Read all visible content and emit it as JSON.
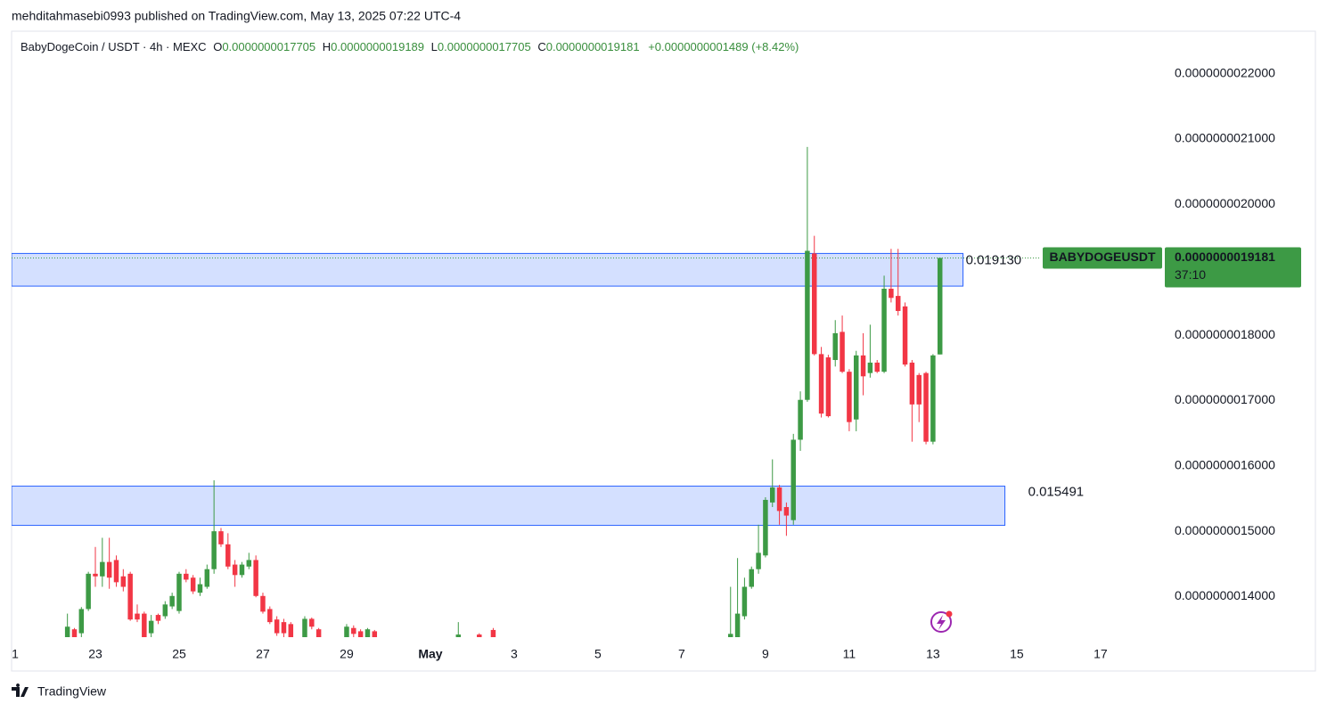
{
  "header": {
    "attribution": "mehditahmasebi0993 published on TradingView.com, May 13, 2025 07:22 UTC-4"
  },
  "chart_data": {
    "type": "candlestick",
    "symbol": "BabyDogeCoin / USDT · 4h · MEXC",
    "ohlc_header": {
      "o_label": "O",
      "open": "0.0000000017705",
      "h_label": "H",
      "high": "0.0000000019189",
      "l_label": "L",
      "low": "0.0000000017705",
      "c_label": "C",
      "close": "0.0000000019181",
      "change": "+0.0000000001489 (+8.42%)"
    },
    "colors": {
      "up": "#3d9a45",
      "down": "#f23645"
    },
    "x": [
      8,
      9,
      10,
      11,
      12,
      13,
      14,
      15,
      16,
      17,
      18,
      19,
      20,
      21,
      22,
      23,
      24,
      25,
      26,
      27,
      28,
      29,
      30,
      31,
      32,
      33,
      34,
      35,
      36,
      37,
      38,
      39,
      40,
      42,
      43,
      44,
      48,
      49,
      50,
      51,
      52,
      64,
      67,
      69,
      103,
      104,
      105,
      106,
      107,
      108,
      109,
      110,
      111,
      112,
      113,
      114,
      115,
      116,
      117,
      118,
      119,
      120,
      121,
      122,
      123,
      124,
      125,
      126,
      127,
      128,
      129,
      130,
      131,
      132,
      133
    ],
    "open": [
      1.335e-09,
      1.35e-09,
      1.344e-09,
      1.381e-09,
      1.435e-09,
      1.431e-09,
      1.453e-09,
      1.456e-09,
      1.431e-09,
      1.435e-09,
      1.374e-09,
      1.374e-09,
      1.344e-09,
      1.372e-09,
      1.37e-09,
      1.385e-09,
      1.378e-09,
      1.435e-09,
      1.429e-09,
      1.406e-09,
      1.415e-09,
      1.442e-09,
      1.5e-09,
      1.48e-09,
      1.449e-09,
      1.433e-09,
      1.446e-09,
      1.456e-09,
      1.401e-09,
      1.381e-09,
      1.365e-09,
      1.361e-09,
      1.358e-09,
      1.335e-09,
      1.366e-09,
      1.35e-09,
      1.335e-09,
      1.352e-09,
      1.347e-09,
      1.335e-09,
      1.347e-09,
      1.33e-09,
      1.342e-09,
      1.349e-09,
      1.33e-09,
      1.335e-09,
      1.37e-09,
      1.415e-09,
      1.442e-09,
      1.463e-09,
      1.544e-09,
      1.567e-09,
      1.537e-09,
      1.517e-09,
      1.64e-09,
      1.701e-09,
      1.925e-09,
      1.771e-09,
      1.766e-09,
      1.762e-09,
      1.805e-09,
      1.744e-09,
      1.671e-09,
      1.769e-09,
      1.742e-09,
      1.758e-09,
      1.744e-09,
      1.871e-09,
      1.86e-09,
      1.844e-09,
      1.758e-09,
      1.739e-09,
      1.742e-09,
      1.637e-09,
      1.7705e-09
    ],
    "high": [
      1.374e-09,
      1.352e-09,
      1.384e-09,
      1.438e-09,
      1.476e-09,
      1.49e-09,
      1.49e-09,
      1.463e-09,
      1.442e-09,
      1.438e-09,
      1.388e-09,
      1.377e-09,
      1.372e-09,
      1.374e-09,
      1.393e-09,
      1.406e-09,
      1.438e-09,
      1.442e-09,
      1.433e-09,
      1.429e-09,
      1.449e-09,
      1.578e-09,
      1.505e-09,
      1.497e-09,
      1.456e-09,
      1.453e-09,
      1.467e-09,
      1.463e-09,
      1.406e-09,
      1.385e-09,
      1.37e-09,
      1.366e-09,
      1.361e-09,
      1.37e-09,
      1.368e-09,
      1.352e-09,
      1.358e-09,
      1.356e-09,
      1.35e-09,
      1.352e-09,
      1.349e-09,
      1.361e-09,
      1.344e-09,
      1.352e-09,
      1.415e-09,
      1.459e-09,
      1.429e-09,
      1.446e-09,
      1.51e-09,
      1.552e-09,
      1.61e-09,
      1.571e-09,
      1.544e-09,
      1.649e-09,
      1.714e-09,
      2.088e-09,
      1.952e-09,
      1.782e-09,
      1.77e-09,
      1.823e-09,
      1.83e-09,
      1.748e-09,
      1.776e-09,
      1.803e-09,
      1.816e-09,
      1.762e-09,
      1.891e-09,
      1.932e-09,
      1.932e-09,
      1.85e-09,
      1.762e-09,
      1.742e-09,
      1.744e-09,
      1.771e-09,
      1.9189e-09
    ],
    "low": [
      1.33e-09,
      1.33e-09,
      1.338e-09,
      1.378e-09,
      1.415e-09,
      1.415e-09,
      1.412e-09,
      1.415e-09,
      1.408e-09,
      1.363e-09,
      1.361e-09,
      1.33e-09,
      1.338e-09,
      1.358e-09,
      1.366e-09,
      1.381e-09,
      1.374e-09,
      1.422e-09,
      1.404e-09,
      1.401e-09,
      1.412e-09,
      1.435e-09,
      1.476e-09,
      1.442e-09,
      1.415e-09,
      1.429e-09,
      1.442e-09,
      1.399e-09,
      1.374e-09,
      1.358e-09,
      1.34e-09,
      1.338e-09,
      1.33e-09,
      1.33e-09,
      1.35e-09,
      1.33e-09,
      1.33e-09,
      1.338e-09,
      1.33e-09,
      1.33e-09,
      1.33e-09,
      1.325e-09,
      1.33e-09,
      1.33e-09,
      1.32e-09,
      1.33e-09,
      1.365e-09,
      1.412e-09,
      1.435e-09,
      1.46e-09,
      1.537e-09,
      1.51e-09,
      1.493e-09,
      1.51e-09,
      1.623e-09,
      1.698e-09,
      1.769e-09,
      1.674e-09,
      1.674e-09,
      1.752e-09,
      1.742e-09,
      1.653e-09,
      1.653e-09,
      1.708e-09,
      1.735e-09,
      1.742e-09,
      1.742e-09,
      1.85e-09,
      1.83e-09,
      1.752e-09,
      1.637e-09,
      1.667e-09,
      1.633e-09,
      1.633e-09,
      1.7705e-09
    ],
    "close": [
      1.354e-09,
      1.336e-09,
      1.381e-09,
      1.435e-09,
      1.431e-09,
      1.453e-09,
      1.429e-09,
      1.422e-09,
      1.415e-09,
      1.365e-09,
      1.365e-09,
      1.335e-09,
      1.363e-09,
      1.363e-09,
      1.388e-09,
      1.401e-09,
      1.435e-09,
      1.426e-09,
      1.408e-09,
      1.419e-09,
      1.442e-09,
      1.5e-09,
      1.48e-09,
      1.446e-09,
      1.433e-09,
      1.449e-09,
      1.456e-09,
      1.401e-09,
      1.377e-09,
      1.361e-09,
      1.344e-09,
      1.344e-09,
      1.335e-09,
      1.366e-09,
      1.354e-09,
      1.335e-09,
      1.354e-09,
      1.343e-09,
      1.335e-09,
      1.35e-09,
      1.335e-09,
      1.342e-09,
      1.335e-09,
      1.335e-09,
      1.343e-09,
      1.374e-09,
      1.415e-09,
      1.442e-09,
      1.467e-09,
      1.548e-09,
      1.567e-09,
      1.531e-09,
      1.524e-09,
      1.64e-09,
      1.701e-09,
      1.929e-09,
      1.771e-09,
      1.68e-09,
      1.676e-09,
      1.803e-09,
      1.744e-09,
      1.667e-09,
      1.769e-09,
      1.737e-09,
      1.758e-09,
      1.744e-09,
      1.871e-09,
      1.857e-09,
      1.837e-09,
      1.755e-09,
      1.694e-09,
      1.694e-09,
      1.637e-09,
      1.769e-09,
      1.9181e-09
    ],
    "xlim": [
      0,
      162.4
    ],
    "ylim": [
      1.338e-09,
      2.265e-09
    ],
    "xticks": [
      {
        "value": 0,
        "label": "1"
      },
      {
        "value": 12,
        "label": "23"
      },
      {
        "value": 24,
        "label": "25"
      },
      {
        "value": 36,
        "label": "27"
      },
      {
        "value": 48,
        "label": "29"
      },
      {
        "value": 60,
        "label": "May"
      },
      {
        "value": 72,
        "label": "3"
      },
      {
        "value": 84,
        "label": "5"
      },
      {
        "value": 96,
        "label": "7"
      },
      {
        "value": 108,
        "label": "9"
      },
      {
        "value": 120,
        "label": "11"
      },
      {
        "value": 132,
        "label": "13"
      },
      {
        "value": 144,
        "label": "15"
      },
      {
        "value": 156,
        "label": "17"
      }
    ],
    "yticks": [
      {
        "value": 2.2e-09,
        "label": "0.0000000022000"
      },
      {
        "value": 2.1e-09,
        "label": "0.0000000021000"
      },
      {
        "value": 2e-09,
        "label": "0.0000000020000"
      },
      {
        "value": 1.8e-09,
        "label": "0.0000000018000"
      },
      {
        "value": 1.7e-09,
        "label": "0.0000000017000"
      },
      {
        "value": 1.6e-09,
        "label": "0.0000000016000"
      },
      {
        "value": 1.5e-09,
        "label": "0.0000000015000"
      },
      {
        "value": 1.4e-09,
        "label": "0.0000000014000"
      }
    ],
    "zones": [
      {
        "label": "0.019130",
        "top": 1.925e-09,
        "bottom": 1.875e-09,
        "x_end": 136.3
      },
      {
        "label": "0.015491",
        "top": 1.569e-09,
        "bottom": 1.509e-09,
        "x_end": 142.3
      }
    ],
    "last_price": {
      "symbol": "BABYDOGEUSDT",
      "value": 1.9181e-09,
      "label": "0.0000000019181",
      "countdown": "37:10"
    }
  },
  "footer": {
    "brand": "TradingView"
  }
}
